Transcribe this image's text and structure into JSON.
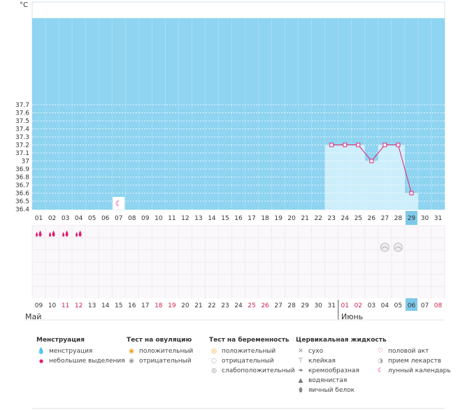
{
  "chart_data": {
    "type": "line",
    "unit": "°C",
    "y_ticks": [
      "37.7",
      "37.6",
      "37.5",
      "37.4",
      "37.3",
      "37.2",
      "37.1",
      "37",
      "36.9",
      "36.8",
      "36.7",
      "36.6",
      "36.5",
      "36.4"
    ],
    "ylim": [
      36.4,
      37.7
    ],
    "cycle_days": [
      "01",
      "02",
      "03",
      "04",
      "05",
      "06",
      "07",
      "08",
      "09",
      "10",
      "11",
      "12",
      "13",
      "14",
      "15",
      "16",
      "17",
      "18",
      "19",
      "20",
      "21",
      "22",
      "23",
      "24",
      "25",
      "26",
      "27",
      "28",
      "29",
      "30",
      "31"
    ],
    "current_cycle_day": "29",
    "series": [
      {
        "points": [
          {
            "day": 23,
            "value": 37.2
          },
          {
            "day": 24,
            "value": 37.2
          },
          {
            "day": 25,
            "value": 37.2
          },
          {
            "day": 26,
            "value": 37.0
          },
          {
            "day": 27,
            "value": 37.2
          },
          {
            "day": 28,
            "value": 37.2
          },
          {
            "day": 29,
            "value": 36.6
          }
        ]
      }
    ],
    "moon_marker_day": 7,
    "menstruation_days": [
      1,
      2,
      3,
      4
    ],
    "pregnancy_test_negative_days": [
      27,
      28
    ],
    "dates": [
      {
        "label": "09",
        "weekend": false
      },
      {
        "label": "10",
        "weekend": false
      },
      {
        "label": "11",
        "weekend": true
      },
      {
        "label": "12",
        "weekend": true
      },
      {
        "label": "13",
        "weekend": false
      },
      {
        "label": "14",
        "weekend": false
      },
      {
        "label": "15",
        "weekend": false
      },
      {
        "label": "16",
        "weekend": false
      },
      {
        "label": "17",
        "weekend": false
      },
      {
        "label": "18",
        "weekend": true
      },
      {
        "label": "19",
        "weekend": true
      },
      {
        "label": "20",
        "weekend": false
      },
      {
        "label": "21",
        "weekend": false
      },
      {
        "label": "22",
        "weekend": false
      },
      {
        "label": "23",
        "weekend": false
      },
      {
        "label": "24",
        "weekend": false
      },
      {
        "label": "25",
        "weekend": true
      },
      {
        "label": "26",
        "weekend": true
      },
      {
        "label": "27",
        "weekend": false
      },
      {
        "label": "28",
        "weekend": false
      },
      {
        "label": "29",
        "weekend": false
      },
      {
        "label": "30",
        "weekend": false
      },
      {
        "label": "31",
        "weekend": false
      },
      {
        "label": "01",
        "weekend": true
      },
      {
        "label": "02",
        "weekend": true
      },
      {
        "label": "03",
        "weekend": false
      },
      {
        "label": "04",
        "weekend": false
      },
      {
        "label": "05",
        "weekend": false
      },
      {
        "label": "06",
        "weekend": false
      },
      {
        "label": "07",
        "weekend": false
      },
      {
        "label": "08",
        "weekend": true
      }
    ],
    "current_date": "06",
    "month_labels": {
      "may": "Май",
      "june": "Июнь"
    }
  },
  "colors": {
    "sky": "#8fd4f0",
    "phase": "#cdeefb",
    "line": "#e0216f",
    "weekend": "#cc1f4d",
    "highlight": "#7ec9ea"
  },
  "legend": {
    "menstruation": {
      "title": "Менструация",
      "items": [
        "менструация",
        "небольшие выделения"
      ]
    },
    "ovulation": {
      "title": "Тест на овуляцию",
      "items": [
        "положительный",
        "отрицательный"
      ]
    },
    "pregnancy": {
      "title": "Тест на беременность",
      "items": [
        "положительный",
        "отрицательный",
        "слабоположительный"
      ]
    },
    "cervical": {
      "title": "Цервикальная жидкость",
      "items": [
        "сухо",
        "клейкая",
        "кремообразная",
        "водянистая",
        "яичный белок"
      ]
    },
    "other": {
      "items": [
        "половой акт",
        "прием лекарств",
        "лунный календарь"
      ]
    }
  }
}
